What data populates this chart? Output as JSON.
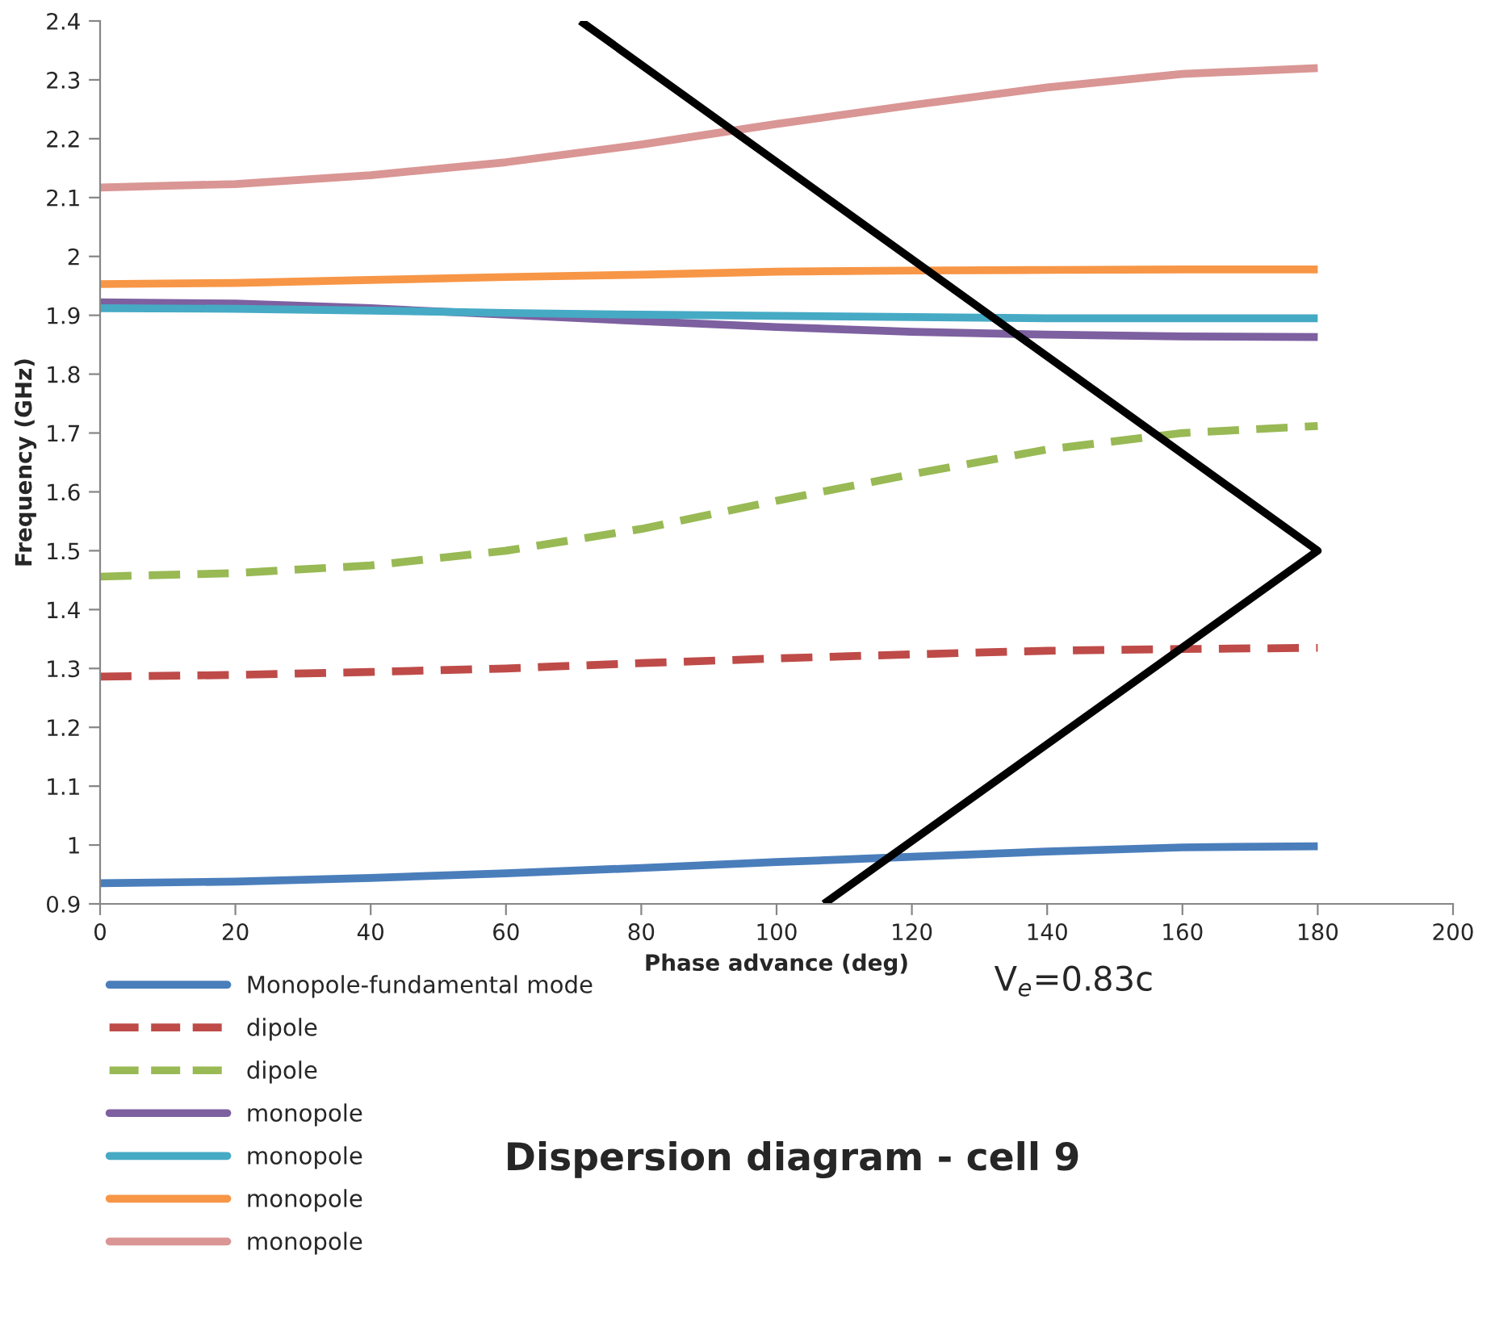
{
  "chart_data": {
    "type": "line",
    "title": "Dispersion diagram - cell 9",
    "xlabel": "Phase advance (deg)",
    "ylabel": "Frequency (GHz)",
    "x": [
      0,
      20,
      40,
      60,
      80,
      100,
      120,
      140,
      160,
      180
    ],
    "series": [
      {
        "name": "Monopole-fundamental mode",
        "color": "#4a7ebb",
        "values": [
          0.935,
          0.938,
          0.944,
          0.952,
          0.961,
          0.971,
          0.98,
          0.989,
          0.996,
          0.998
        ]
      },
      {
        "name": "dipole",
        "color": "#be4b48",
        "line_style": "dashed",
        "values": [
          1.286,
          1.289,
          1.294,
          1.3,
          1.309,
          1.317,
          1.324,
          1.33,
          1.333,
          1.335
        ]
      },
      {
        "name": "dipole",
        "color": "#98b954",
        "line_style": "dashed",
        "values": [
          1.456,
          1.462,
          1.475,
          1.5,
          1.537,
          1.585,
          1.63,
          1.672,
          1.7,
          1.712
        ]
      },
      {
        "name": "monopole",
        "color": "#7d60a0",
        "values": [
          1.922,
          1.92,
          1.912,
          1.901,
          1.89,
          1.88,
          1.872,
          1.867,
          1.864,
          1.863
        ]
      },
      {
        "name": "monopole",
        "color": "#46aac5",
        "values": [
          1.912,
          1.911,
          1.908,
          1.904,
          1.901,
          1.899,
          1.897,
          1.895,
          1.895,
          1.895
        ]
      },
      {
        "name": "monopole",
        "color": "#f79646",
        "values": [
          1.953,
          1.955,
          1.96,
          1.965,
          1.969,
          1.974,
          1.976,
          1.977,
          1.978,
          1.978
        ]
      },
      {
        "name": "monopole",
        "color": "#d99694",
        "values": [
          2.117,
          2.123,
          2.138,
          2.16,
          2.19,
          2.225,
          2.257,
          2.287,
          2.31,
          2.32
        ]
      },
      {
        "color": "#000000",
        "x": [
          71,
          180,
          107
        ],
        "values": [
          2.4,
          1.5,
          0.9
        ]
      }
    ],
    "annotations": [
      "V$_{e}$=0.83c"
    ],
    "xlim": [
      0,
      200
    ],
    "xticks": [
      0,
      20,
      40,
      60,
      80,
      100,
      120,
      140,
      160,
      180,
      200
    ],
    "ylim": [
      0.9,
      2.4
    ],
    "yticks": [
      {
        "value": 0.9,
        "label": "0.9"
      },
      {
        "value": 1.0,
        "label": "1"
      },
      {
        "value": 1.1,
        "label": "1.1"
      },
      {
        "value": 1.2,
        "label": "1.2"
      },
      {
        "value": 1.3,
        "label": "1.3"
      },
      {
        "value": 1.4,
        "label": "1.4"
      },
      {
        "value": 1.5,
        "label": "1.5"
      },
      {
        "value": 1.6,
        "label": "1.6"
      },
      {
        "value": 1.7,
        "label": "1.7"
      },
      {
        "value": 1.8,
        "label": "1.8"
      },
      {
        "value": 1.9,
        "label": "1.9"
      },
      {
        "value": 2.0,
        "label": "2"
      },
      {
        "value": 2.1,
        "label": "2.1"
      },
      {
        "value": 2.2,
        "label": "2.2"
      },
      {
        "value": 2.3,
        "label": "2.3"
      },
      {
        "value": 2.4,
        "label": "2.4"
      }
    ],
    "legend": "bottom left",
    "grid": false
  }
}
